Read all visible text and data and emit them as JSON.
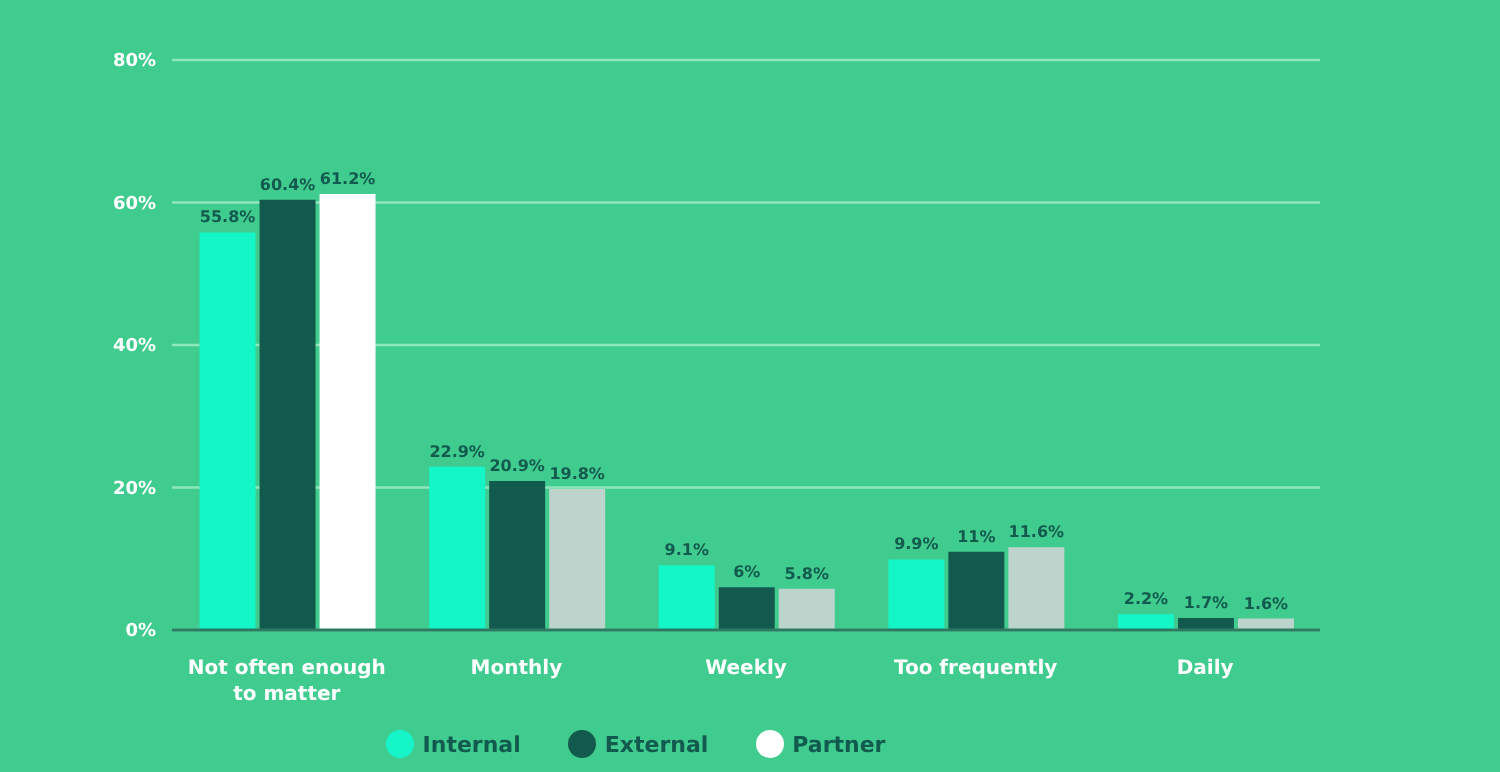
{
  "chart_data": {
    "type": "bar",
    "categories": [
      "Not often enough to matter",
      "Monthly",
      "Weekly",
      "Too frequently",
      "Daily"
    ],
    "series": [
      {
        "name": "Internal",
        "color": "#14f5c8",
        "values": [
          55.8,
          22.9,
          9.1,
          9.9,
          2.2
        ],
        "value_labels": [
          "55.8%",
          "22.9%",
          "9.1%",
          "9.9%",
          "2.2%"
        ]
      },
      {
        "name": "External",
        "color": "#135a4e",
        "values": [
          60.4,
          20.9,
          6,
          11,
          1.7
        ],
        "value_labels": [
          "60.4%",
          "20.9%",
          "6%",
          "11%",
          "1.7%"
        ]
      },
      {
        "name": "Partner",
        "color": "#ffffff",
        "colors": [
          "#ffffff",
          "#bcd4cb",
          "#bcd4cb",
          "#bcd4cb",
          "#bcd4cb"
        ],
        "values": [
          61.2,
          19.8,
          5.8,
          11.6,
          1.6
        ],
        "value_labels": [
          "61.2%",
          "19.8%",
          "5.8%",
          "11.6%",
          "1.6%"
        ]
      }
    ],
    "ylim": [
      0,
      80
    ],
    "yticks": [
      {
        "value": 0,
        "label": "0%"
      },
      {
        "value": 20,
        "label": "20%"
      },
      {
        "value": 40,
        "label": "40%"
      },
      {
        "value": 60,
        "label": "60%"
      },
      {
        "value": 80,
        "label": "80%"
      }
    ],
    "grid": "y",
    "legend": "bottom"
  }
}
